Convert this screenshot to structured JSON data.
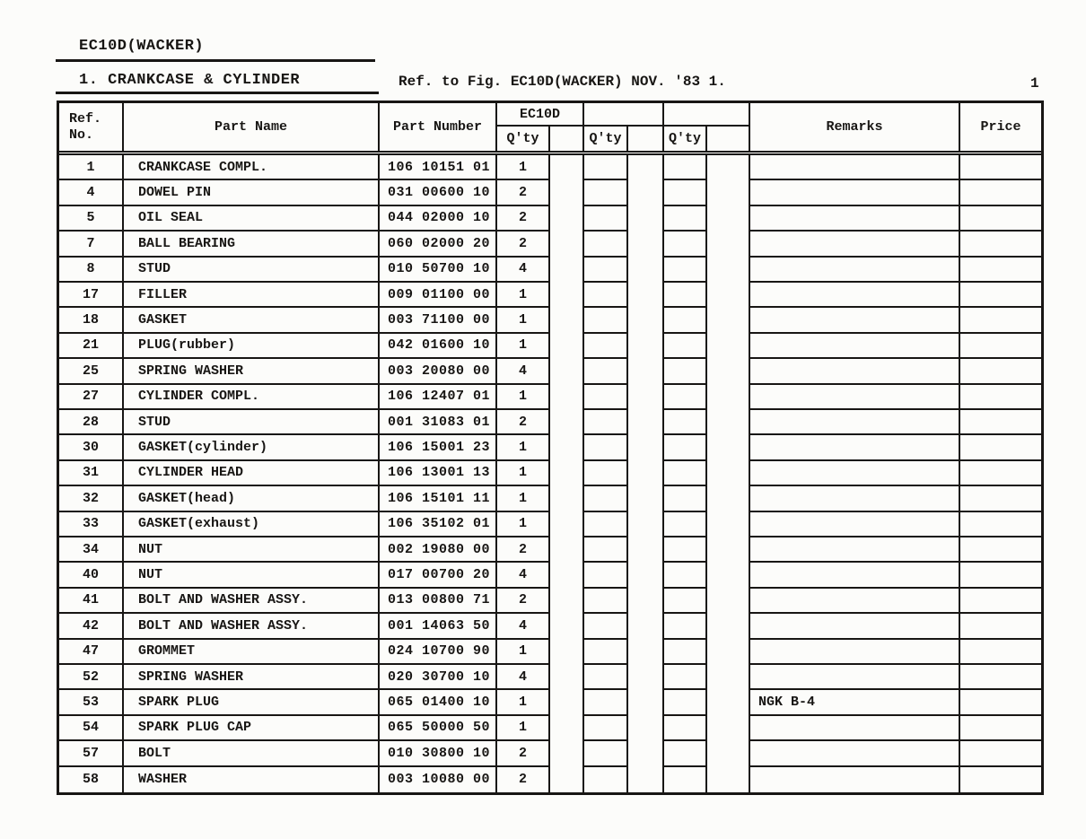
{
  "page": {
    "model_title": "EC10D(WACKER)",
    "section_title": "1. CRANKCASE & CYLINDER",
    "fig_reference": "Ref. to Fig. EC10D(WACKER) NOV. '83 1.",
    "page_number": "1"
  },
  "colors": {
    "ink": "#181614",
    "paper": "#fcfcfa"
  },
  "table": {
    "headers": {
      "ref_no_line1": "Ref.",
      "ref_no_line2": "No.",
      "part_name": "Part Name",
      "part_number": "Part Number",
      "model_group": "EC10D",
      "qty1": "Q'ty",
      "qty2": "Q'ty",
      "qty3": "Q'ty",
      "remarks": "Remarks",
      "price": "Price"
    },
    "rows": [
      {
        "ref_no": "1",
        "part_name": "CRANKCASE COMPL.",
        "part_number": "106 10151 01",
        "qty": "1",
        "remarks": ""
      },
      {
        "ref_no": "4",
        "part_name": "DOWEL PIN",
        "part_number": "031 00600 10",
        "qty": "2",
        "remarks": ""
      },
      {
        "ref_no": "5",
        "part_name": "OIL SEAL",
        "part_number": "044 02000 10",
        "qty": "2",
        "remarks": ""
      },
      {
        "ref_no": "7",
        "part_name": "BALL BEARING",
        "part_number": "060 02000 20",
        "qty": "2",
        "remarks": ""
      },
      {
        "ref_no": "8",
        "part_name": "STUD",
        "part_number": "010 50700 10",
        "qty": "4",
        "remarks": ""
      },
      {
        "ref_no": "17",
        "part_name": "FILLER",
        "part_number": "009 01100 00",
        "qty": "1",
        "remarks": ""
      },
      {
        "ref_no": "18",
        "part_name": "GASKET",
        "part_number": "003 71100 00",
        "qty": "1",
        "remarks": ""
      },
      {
        "ref_no": "21",
        "part_name": "PLUG(rubber)",
        "part_number": "042 01600 10",
        "qty": "1",
        "remarks": ""
      },
      {
        "ref_no": "25",
        "part_name": "SPRING WASHER",
        "part_number": "003 20080 00",
        "qty": "4",
        "remarks": ""
      },
      {
        "ref_no": "27",
        "part_name": "CYLINDER COMPL.",
        "part_number": "106 12407 01",
        "qty": "1",
        "remarks": ""
      },
      {
        "ref_no": "28",
        "part_name": "STUD",
        "part_number": "001 31083 01",
        "qty": "2",
        "remarks": ""
      },
      {
        "ref_no": "30",
        "part_name": "GASKET(cylinder)",
        "part_number": "106 15001 23",
        "qty": "1",
        "remarks": ""
      },
      {
        "ref_no": "31",
        "part_name": "CYLINDER HEAD",
        "part_number": "106 13001 13",
        "qty": "1",
        "remarks": ""
      },
      {
        "ref_no": "32",
        "part_name": "GASKET(head)",
        "part_number": "106 15101 11",
        "qty": "1",
        "remarks": ""
      },
      {
        "ref_no": "33",
        "part_name": "GASKET(exhaust)",
        "part_number": "106 35102 01",
        "qty": "1",
        "remarks": ""
      },
      {
        "ref_no": "34",
        "part_name": "NUT",
        "part_number": "002 19080 00",
        "qty": "2",
        "remarks": ""
      },
      {
        "ref_no": "40",
        "part_name": "NUT",
        "part_number": "017 00700 20",
        "qty": "4",
        "remarks": ""
      },
      {
        "ref_no": "41",
        "part_name": "BOLT AND WASHER ASSY.",
        "part_number": "013 00800 71",
        "qty": "2",
        "remarks": ""
      },
      {
        "ref_no": "42",
        "part_name": "BOLT AND WASHER ASSY.",
        "part_number": "001 14063 50",
        "qty": "4",
        "remarks": ""
      },
      {
        "ref_no": "47",
        "part_name": "GROMMET",
        "part_number": "024 10700 90",
        "qty": "1",
        "remarks": ""
      },
      {
        "ref_no": "52",
        "part_name": "SPRING WASHER",
        "part_number": "020 30700 10",
        "qty": "4",
        "remarks": ""
      },
      {
        "ref_no": "53",
        "part_name": "SPARK PLUG",
        "part_number": "065 01400 10",
        "qty": "1",
        "remarks": "NGK B-4"
      },
      {
        "ref_no": "54",
        "part_name": "SPARK PLUG CAP",
        "part_number": "065 50000 50",
        "qty": "1",
        "remarks": ""
      },
      {
        "ref_no": "57",
        "part_name": "BOLT",
        "part_number": "010 30800 10",
        "qty": "2",
        "remarks": ""
      },
      {
        "ref_no": "58",
        "part_name": "WASHER",
        "part_number": "003 10080 00",
        "qty": "2",
        "remarks": ""
      }
    ]
  }
}
